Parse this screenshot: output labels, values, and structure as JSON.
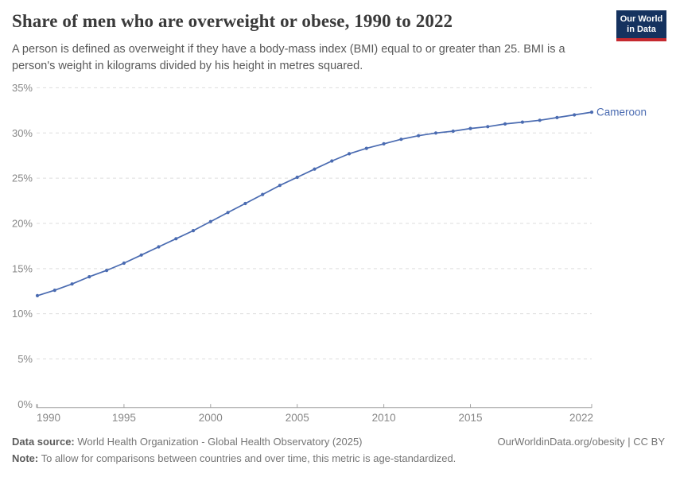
{
  "header": {
    "title": "Share of men who are overweight or obese, 1990 to 2022",
    "logo": {
      "line1": "Our World",
      "line2": "in Data"
    }
  },
  "subtitle": "A person is defined as overweight if they have a body-mass index (BMI) equal to or greater than 25. BMI is a person's weight in kilograms divided by his height in metres squared.",
  "chart_data": {
    "type": "line",
    "title": "Share of men who are overweight or obese, 1990 to 2022",
    "xlabel": "",
    "ylabel": "",
    "x": [
      1990,
      1991,
      1992,
      1993,
      1994,
      1995,
      1996,
      1997,
      1998,
      1999,
      2000,
      2001,
      2002,
      2003,
      2004,
      2005,
      2006,
      2007,
      2008,
      2009,
      2010,
      2011,
      2012,
      2013,
      2014,
      2015,
      2016,
      2017,
      2018,
      2019,
      2020,
      2021,
      2022
    ],
    "series": [
      {
        "name": "Cameroon",
        "values": [
          12.0,
          12.6,
          13.3,
          14.1,
          14.8,
          15.6,
          16.5,
          17.4,
          18.3,
          19.2,
          20.2,
          21.2,
          22.2,
          23.2,
          24.2,
          25.1,
          26.0,
          26.9,
          27.7,
          28.3,
          28.8,
          29.3,
          29.7,
          30.0,
          30.2,
          30.5,
          30.7,
          31.0,
          31.2,
          31.4,
          31.7,
          32.0,
          32.3
        ]
      }
    ],
    "ylim": [
      0,
      35
    ],
    "yticks": [
      0,
      5,
      10,
      15,
      20,
      25,
      30,
      35
    ],
    "ytick_suffix": "%",
    "xticks": [
      1990,
      1995,
      2000,
      2005,
      2010,
      2015,
      2022
    ],
    "grid": "horizontal-dashed",
    "legend_position": "end-of-line-label",
    "end_label": "Cameroon"
  },
  "colors": {
    "series": "#4a6bb1",
    "grid": "#dddddd",
    "axis": "#a3a3a3",
    "tick_label": "#878787",
    "logo_bg": "#15325f",
    "logo_stripe": "#c5292f"
  },
  "footer": {
    "datasource_label": "Data source:",
    "datasource_text": " World Health Organization - Global Health Observatory (2025)",
    "note_label": "Note:",
    "note_text": " To allow for comparisons between countries and over time, this metric is age-standardized.",
    "link_text": "OurWorldinData.org/obesity | CC BY"
  }
}
